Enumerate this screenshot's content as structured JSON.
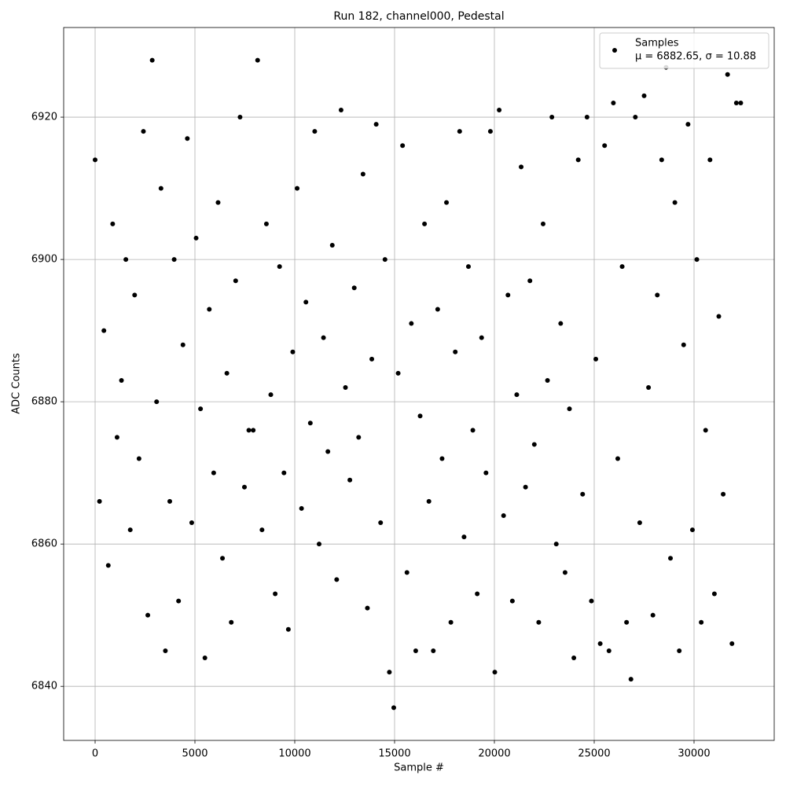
{
  "chart_data": {
    "type": "scatter",
    "title": "Run 182, channel000, Pedestal",
    "x_label": "Sample #",
    "y_label": "ADC Counts",
    "legend_position": "upper right",
    "annotation": "μ = 6882.65, σ = 10.88",
    "grid": true,
    "xlim": [
      -1575,
      34016
    ],
    "ylim": [
      6832.4,
      6932.6
    ],
    "xticks": [
      0,
      5000,
      10000,
      15000,
      20000,
      25000,
      30000
    ],
    "yticks": [
      6840,
      6860,
      6880,
      6900,
      6920
    ],
    "series": [
      {
        "name": "Samples",
        "color": "#000000",
        "x": [
          0,
          220,
          440,
          660,
          880,
          1100,
          1320,
          1540,
          1760,
          1980,
          2200,
          2420,
          2640,
          2860,
          3080,
          3300,
          3520,
          3740,
          3960,
          4180,
          4400,
          4620,
          4840,
          5060,
          5280,
          5500,
          5720,
          5940,
          6160,
          6380,
          6600,
          6820,
          7040,
          7260,
          7480,
          7700,
          7920,
          8140,
          8360,
          8580,
          8800,
          9020,
          9240,
          9460,
          9680,
          9900,
          10120,
          10340,
          10560,
          10780,
          11000,
          11220,
          11440,
          11660,
          11880,
          12100,
          12320,
          12540,
          12760,
          12980,
          13200,
          13420,
          13640,
          13860,
          14080,
          14300,
          14520,
          14740,
          14960,
          15180,
          15400,
          15620,
          15840,
          16060,
          16280,
          16500,
          16720,
          16940,
          17160,
          17380,
          17600,
          17820,
          18040,
          18260,
          18480,
          18700,
          18920,
          19140,
          19360,
          19580,
          19800,
          20020,
          20240,
          20460,
          20680,
          20900,
          21120,
          21340,
          21560,
          21780,
          22000,
          22220,
          22440,
          22660,
          22880,
          23100,
          23320,
          23540,
          23760,
          23980,
          24200,
          24420,
          24640,
          24860,
          25080,
          25300,
          25520,
          25740,
          25960,
          26180,
          26400,
          26620,
          26840,
          27060,
          27280,
          27500,
          27720,
          27940,
          28160,
          28380,
          28600,
          28820,
          29040,
          29260,
          29480,
          29700,
          29920,
          30140,
          30360,
          30580,
          30800,
          31020,
          31240,
          31460,
          31680,
          31900,
          32120,
          32340
        ],
        "values": [
          6914,
          6866,
          6890,
          6857,
          6905,
          6875,
          6883,
          6900,
          6862,
          6895,
          6872,
          6918,
          6850,
          6928,
          6880,
          6910,
          6845,
          6866,
          6900,
          6852,
          6888,
          6917,
          6863,
          6903,
          6879,
          6844,
          6893,
          6870,
          6908,
          6858,
          6884,
          6849,
          6897,
          6920,
          6868,
          6876,
          6876,
          6928,
          6862,
          6905,
          6881,
          6853,
          6899,
          6870,
          6848,
          6887,
          6910,
          6865,
          6894,
          6877,
          6918,
          6860,
          6889,
          6873,
          6902,
          6855,
          6921,
          6882,
          6869,
          6896,
          6875,
          6912,
          6851,
          6886,
          6919,
          6863,
          6900,
          6842,
          6837,
          6884,
          6916,
          6856,
          6891,
          6845,
          6878,
          6905,
          6866,
          6845,
          6893,
          6872,
          6908,
          6849,
          6887,
          6918,
          6861,
          6899,
          6876,
          6853,
          6889,
          6870,
          6918,
          6842,
          6921,
          6864,
          6895,
          6852,
          6881,
          6913,
          6868,
          6897,
          6874,
          6849,
          6905,
          6883,
          6920,
          6860,
          6891,
          6856,
          6879,
          6844,
          6914,
          6867,
          6920,
          6852,
          6886,
          6846,
          6916,
          6845,
          6922,
          6872,
          6899,
          6849,
          6841,
          6920,
          6863,
          6923,
          6882,
          6850,
          6895,
          6914,
          6927,
          6858,
          6908,
          6845,
          6888,
          6919,
          6862,
          6900,
          6849,
          6876,
          6914,
          6853,
          6892,
          6867,
          6926,
          6846,
          6922,
          6922
        ]
      }
    ]
  }
}
